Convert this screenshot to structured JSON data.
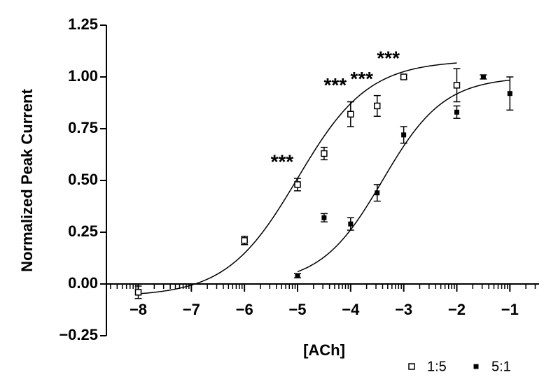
{
  "chart_data": {
    "type": "scatter",
    "xlabel": "[ACh]",
    "ylabel": "Normalized Peak Current",
    "xlim": [
      -8.6,
      -0.45
    ],
    "xticks": [
      {
        "value": -8,
        "label": "−8"
      },
      {
        "value": -7,
        "label": "−7"
      },
      {
        "value": -6,
        "label": "−6"
      },
      {
        "value": -5,
        "label": "−5"
      },
      {
        "value": -4,
        "label": "−4"
      },
      {
        "value": -3,
        "label": "−3"
      },
      {
        "value": -2,
        "label": "−2"
      },
      {
        "value": -1,
        "label": "−1"
      }
    ],
    "minor_ticks": "log",
    "ylim": [
      -0.25,
      1.25
    ],
    "yticks": [
      {
        "value": -0.25,
        "label": "−0.25"
      },
      {
        "value": 0,
        "label": "0.00"
      },
      {
        "value": 0.25,
        "label": "0.25"
      },
      {
        "value": 0.5,
        "label": "0.50"
      },
      {
        "value": 0.75,
        "label": "0.75"
      },
      {
        "value": 1,
        "label": "1.00"
      },
      {
        "value": 1.25,
        "label": "1.25"
      }
    ],
    "legend": "bottom-right",
    "series": [
      {
        "name": "1:5",
        "marker": "open-square",
        "color": "#000000",
        "x": [
          -8,
          -6,
          -5,
          -4.5,
          -4,
          -3.5,
          -3,
          -2
        ],
        "values": [
          -0.04,
          0.21,
          0.48,
          0.63,
          0.82,
          0.86,
          1.0,
          0.96
        ],
        "errors": [
          0.03,
          0.02,
          0.03,
          0.03,
          0.06,
          0.05,
          0.01,
          0.08
        ],
        "fit": {
          "bottom": -0.06,
          "top": 1.08,
          "logEC50": -5.0,
          "hill": 0.65,
          "range": [
            -8,
            -2
          ]
        }
      },
      {
        "name": "5:1",
        "marker": "filled-square",
        "color": "#000000",
        "x": [
          -5,
          -4.5,
          -4,
          -3.5,
          -3,
          -2,
          -1.5,
          -1
        ],
        "values": [
          0.04,
          0.32,
          0.29,
          0.44,
          0.72,
          0.83,
          1.0,
          0.92
        ],
        "errors": [
          0.01,
          0.02,
          0.03,
          0.04,
          0.04,
          0.03,
          0.01,
          0.08
        ],
        "fit": {
          "bottom": 0,
          "top": 1.0,
          "logEC50": -3.4,
          "hill": 0.75,
          "range": [
            -5,
            -1
          ]
        }
      }
    ],
    "annotations": [
      {
        "text": "***",
        "x": -5
      },
      {
        "text": "***",
        "x": -4
      },
      {
        "text": "***",
        "x": -3.5
      },
      {
        "text": "***",
        "x": -3
      }
    ]
  }
}
